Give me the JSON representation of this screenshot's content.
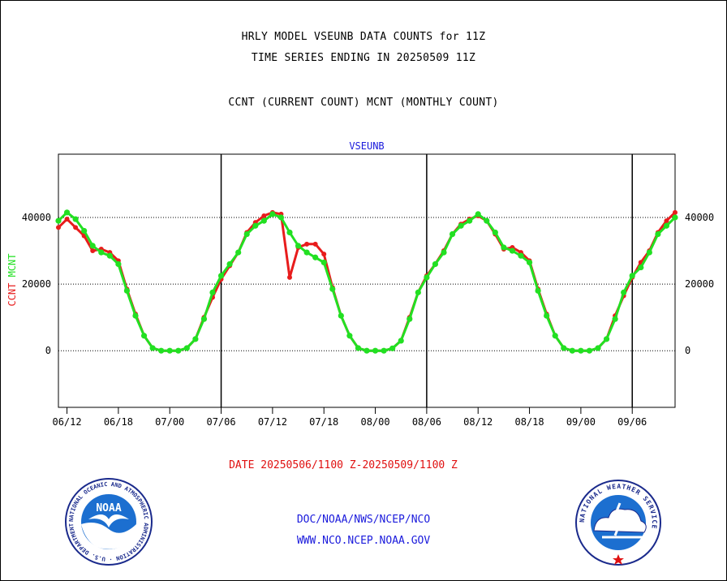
{
  "header": {
    "line1": "HRLY MODEL VSEUNB DATA COUNTS for 11Z",
    "line2": "TIME SERIES ENDING IN 20250509 11Z",
    "line3": "CCNT (CURRENT COUNT) MCNT (MONTHLY COUNT)"
  },
  "footer": {
    "date_range": "DATE 20250506/1100 Z-20250509/1100 Z",
    "org_path": "DOC/NOAA/NWS/NCEP/NCO",
    "website": "WWW.NCO.NCEP.NOAA.GOV"
  },
  "logos": {
    "left_text": "NOAA",
    "left_ring": "NATIONAL OCEANIC AND ATMOSPHERIC ADMINISTRATION · U.S. DEPARTMENT OF COMMERCE",
    "right_ring": "NATIONAL WEATHER SERVICE"
  },
  "colors": {
    "ccnt": "#e81c1c",
    "mcnt": "#22e022",
    "title_blue": "#1a1adc",
    "axis": "#000000"
  },
  "chart_data": {
    "type": "line",
    "title": "VSEUNB",
    "ylabel_series": [
      "CCNT",
      "MCNT"
    ],
    "yticks": [
      0,
      20000,
      40000
    ],
    "ylim": [
      -17000,
      59000
    ],
    "x_tick_labels": [
      "06/12",
      "06/18",
      "07/00",
      "07/06",
      "07/12",
      "07/18",
      "08/00",
      "08/06",
      "08/12",
      "08/18",
      "09/00",
      "09/06"
    ],
    "x_tick_positions": [
      1,
      7,
      13,
      19,
      25,
      31,
      37,
      43,
      49,
      55,
      61,
      67
    ],
    "xlim": [
      0,
      72
    ],
    "day_boundaries": [
      19,
      43,
      67
    ],
    "grid": "horizontal dotted at y ticks",
    "series": [
      {
        "name": "CCNT",
        "color": "#e81c1c",
        "x": [
          0,
          1,
          2,
          3,
          4,
          5,
          6,
          7,
          8,
          9,
          10,
          11,
          12,
          13,
          14,
          15,
          16,
          17,
          18,
          19,
          20,
          21,
          22,
          23,
          24,
          25,
          26,
          27,
          28,
          29,
          30,
          31,
          32,
          33,
          34,
          35,
          36,
          37,
          38,
          39,
          40,
          41,
          42,
          43,
          44,
          45,
          46,
          47,
          48,
          49,
          50,
          51,
          52,
          53,
          54,
          55,
          56,
          57,
          58,
          59,
          60,
          61,
          62,
          63,
          64,
          65,
          66,
          67,
          68,
          69,
          70,
          71,
          72
        ],
        "values": [
          37000,
          39500,
          37000,
          34500,
          30000,
          30500,
          29500,
          27000,
          18500,
          11000,
          4500,
          800,
          0,
          0,
          0,
          800,
          3500,
          10000,
          16000,
          21500,
          25500,
          29500,
          35500,
          38500,
          40500,
          41500,
          41000,
          22000,
          31000,
          32000,
          32000,
          29000,
          19000,
          10500,
          4500,
          800,
          0,
          0,
          0,
          700,
          3000,
          10000,
          17500,
          22500,
          26000,
          30000,
          35000,
          38000,
          39500,
          40500,
          39000,
          35000,
          30500,
          31000,
          29500,
          27000,
          18500,
          11000,
          4500,
          800,
          0,
          0,
          0,
          800,
          3500,
          10500,
          16500,
          22000,
          26500,
          30000,
          35500,
          39000,
          41500
        ]
      },
      {
        "name": "MCNT",
        "color": "#22e022",
        "x": [
          0,
          1,
          2,
          3,
          4,
          5,
          6,
          7,
          8,
          9,
          10,
          11,
          12,
          13,
          14,
          15,
          16,
          17,
          18,
          19,
          20,
          21,
          22,
          23,
          24,
          25,
          26,
          27,
          28,
          29,
          30,
          31,
          32,
          33,
          34,
          35,
          36,
          37,
          38,
          39,
          40,
          41,
          42,
          43,
          44,
          45,
          46,
          47,
          48,
          49,
          50,
          51,
          52,
          53,
          54,
          55,
          56,
          57,
          58,
          59,
          60,
          61,
          62,
          63,
          64,
          65,
          66,
          67,
          68,
          69,
          70,
          71,
          72
        ],
        "values": [
          39000,
          41500,
          39500,
          36000,
          31500,
          29500,
          28500,
          26000,
          18000,
          10500,
          4500,
          800,
          0,
          0,
          0,
          800,
          3500,
          9500,
          17500,
          22500,
          26000,
          29500,
          35000,
          37500,
          39000,
          41000,
          40000,
          35500,
          31500,
          29500,
          28000,
          26500,
          18500,
          10500,
          4500,
          800,
          0,
          0,
          0,
          700,
          3000,
          9500,
          17500,
          22000,
          26000,
          29500,
          35000,
          37500,
          39000,
          41000,
          39000,
          35500,
          31000,
          30000,
          28500,
          26500,
          18000,
          10500,
          4500,
          800,
          0,
          0,
          0,
          800,
          3500,
          9500,
          17500,
          22500,
          25000,
          29500,
          35000,
          37500,
          40000
        ]
      }
    ]
  }
}
